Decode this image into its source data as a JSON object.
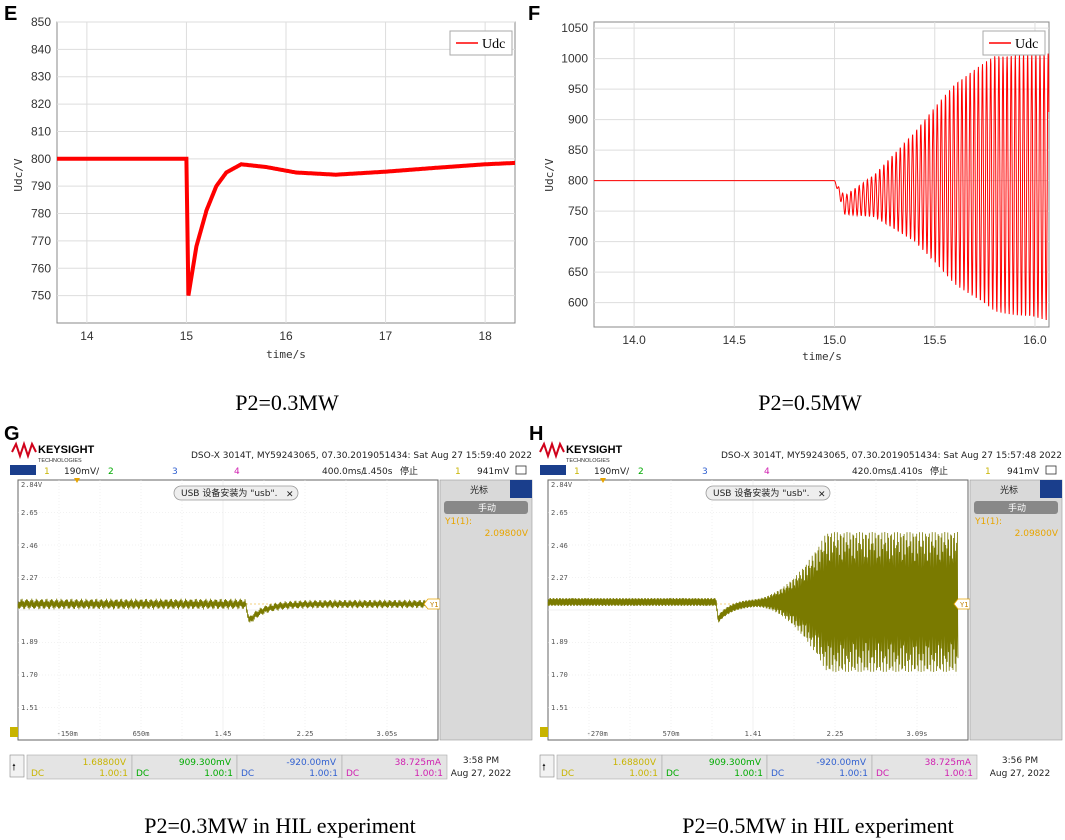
{
  "colors": {
    "trace_red": "#ff0000",
    "scope_trace": "#7a7a00",
    "scope_y_marker": "#e8a500",
    "ch1": "#c8b400",
    "ch2": "#00aa00",
    "ch3": "#3060d0",
    "ch4": "#d020b0",
    "keysight_red": "#d0021b"
  },
  "panels": {
    "E": {
      "label": "E",
      "caption": "P2=0.3MW",
      "legend": "Udc"
    },
    "F": {
      "label": "F",
      "caption": "P2=0.5MW",
      "legend": "Udc"
    },
    "G": {
      "label": "G",
      "caption": "P2=0.3MW in HIL experiment"
    },
    "H": {
      "label": "H",
      "caption": "P2=0.5MW in HIL experiment"
    }
  },
  "chart_data": [
    {
      "id": "E",
      "type": "line",
      "title": "",
      "xlabel": "time/s",
      "ylabel": "Udc/V",
      "xlim": [
        13.7,
        18.3
      ],
      "ylim": [
        740,
        850
      ],
      "xticks": [
        14,
        15,
        16,
        17,
        18
      ],
      "xtick_labels": [
        "14",
        "15",
        "16",
        "17",
        "18"
      ],
      "yticks": [
        750,
        760,
        770,
        780,
        790,
        800,
        810,
        820,
        830,
        840,
        850
      ],
      "ytick_labels": [
        "750",
        "760",
        "770",
        "780",
        "790",
        "800",
        "810",
        "820",
        "830",
        "840",
        "850"
      ],
      "series": [
        {
          "name": "Udc",
          "description": "800 V before t=15 s, dips to ~750 V at 15.02 s, peaks ~798 V at 15.55 s, settles ~794 V near 16.5 s, rises to ~798.5 V at 18.3 s"
        }
      ],
      "x": [
        13.7,
        15.0,
        15.02,
        15.1,
        15.2,
        15.3,
        15.4,
        15.55,
        15.8,
        16.1,
        16.5,
        17.0,
        17.5,
        18.0,
        18.3
      ],
      "y": [
        800,
        800,
        750,
        768,
        781,
        790,
        795,
        798,
        797,
        795,
        794.2,
        795.3,
        796.7,
        798,
        798.5
      ]
    },
    {
      "id": "F",
      "type": "line",
      "title": "",
      "xlabel": "time/s",
      "ylabel": "Udc/V",
      "xlim": [
        13.8,
        16.07
      ],
      "ylim": [
        560,
        1060
      ],
      "xticks": [
        14.0,
        14.5,
        15.0,
        15.5,
        16.0
      ],
      "xtick_labels": [
        "14.0",
        "14.5",
        "15.0",
        "15.5",
        "16.0"
      ],
      "yticks": [
        600,
        650,
        700,
        750,
        800,
        850,
        900,
        950,
        1000,
        1050
      ],
      "ytick_labels": [
        "600",
        "650",
        "700",
        "750",
        "800",
        "850",
        "900",
        "950",
        "1000",
        "1050"
      ],
      "series": [
        {
          "name": "Udc",
          "description": "constant 800 V until 15.0 s, then growing oscillation around ~790 V, envelope reaching ~1010 V max and ~570 V min by 16.0 s"
        }
      ],
      "envelope": {
        "t": [
          15.0,
          15.05,
          15.2,
          15.4,
          15.6,
          15.8,
          16.07
        ],
        "upper": [
          800,
          775,
          810,
          880,
          960,
          1005,
          1010
        ],
        "lower": [
          800,
          745,
          740,
          700,
          630,
          585,
          570
        ]
      }
    },
    {
      "id": "G",
      "type": "line",
      "instrument": "oscilloscope",
      "ytick_labels": [
        "2.84V",
        "2.65",
        "2.46",
        "2.27",
        "1.89",
        "1.70",
        "1.51"
      ],
      "xtick_labels": [
        "-150m",
        "650m",
        "1.45",
        "2.25",
        "3.05s"
      ],
      "series": [
        {
          "name": "Ch1",
          "description": "flat ~2.08 V with ripple, dip to ~1.95 V near 1.6 s then recovery"
        }
      ]
    },
    {
      "id": "H",
      "type": "line",
      "instrument": "oscilloscope",
      "ytick_labels": [
        "2.84V",
        "2.65",
        "2.46",
        "2.27",
        "1.89",
        "1.70",
        "1.51"
      ],
      "xtick_labels": [
        "-270m",
        "570m",
        "1.41",
        "2.25",
        "3.09s"
      ],
      "series": [
        {
          "name": "Ch1",
          "description": "flat ~2.08 V, small dip near 1.1 s, then growing oscillation reaching 1.65–2.55 V"
        }
      ]
    }
  ],
  "scopes": {
    "G": {
      "brand": "KEYSIGHT",
      "brand_sub": "TECHNOLOGIES",
      "info": "DSO-X 3014T, MY59243065, 07.30.2019051434: Sat Aug 27 15:59:40 2022",
      "ch1_label": "1",
      "ch1_scale": "190mV/",
      "ch2_label": "2",
      "ch3_label": "3",
      "ch4_label": "4",
      "timebase": "400.0ms/",
      "delay": "1.450s",
      "run_state": "停止",
      "trig_label": "1",
      "trig_level": "941mV",
      "usb_notice": "USB 设备安装为 \"usb\".",
      "panel_title": "光标",
      "panel_mode": "手动",
      "y1_label": "Y1(1):",
      "y1_value": "2.09800V",
      "y_marker": "Y1",
      "ch_bottom": [
        {
          "value": "1.68800V",
          "coupling": "DC",
          "ratio": "1.00:1"
        },
        {
          "value": "909.300mV",
          "coupling": "DC",
          "ratio": "1.00:1"
        },
        {
          "value": "-920.00mV",
          "coupling": "DC",
          "ratio": "1.00:1"
        },
        {
          "value": "38.725mA",
          "coupling": "DC",
          "ratio": "1.00:1"
        }
      ],
      "clock_time": "3:58 PM",
      "clock_date": "Aug 27, 2022"
    },
    "H": {
      "brand": "KEYSIGHT",
      "brand_sub": "TECHNOLOGIES",
      "info": "DSO-X 3014T, MY59243065, 07.30.2019051434: Sat Aug 27 15:57:48 2022",
      "ch1_label": "1",
      "ch1_scale": "190mV/",
      "ch2_label": "2",
      "ch3_label": "3",
      "ch4_label": "4",
      "timebase": "420.0ms/",
      "delay": "1.410s",
      "run_state": "停止",
      "trig_label": "1",
      "trig_level": "941mV",
      "usb_notice": "USB 设备安装为 \"usb\".",
      "panel_title": "光标",
      "panel_mode": "手动",
      "y1_label": "Y1(1):",
      "y1_value": "2.09800V",
      "y_marker": "Y1",
      "ch_bottom": [
        {
          "value": "1.68800V",
          "coupling": "DC",
          "ratio": "1.00:1"
        },
        {
          "value": "909.300mV",
          "coupling": "DC",
          "ratio": "1.00:1"
        },
        {
          "value": "-920.00mV",
          "coupling": "DC",
          "ratio": "1.00:1"
        },
        {
          "value": "38.725mA",
          "coupling": "DC",
          "ratio": "1.00:1"
        }
      ],
      "clock_time": "3:56 PM",
      "clock_date": "Aug 27, 2022"
    }
  }
}
